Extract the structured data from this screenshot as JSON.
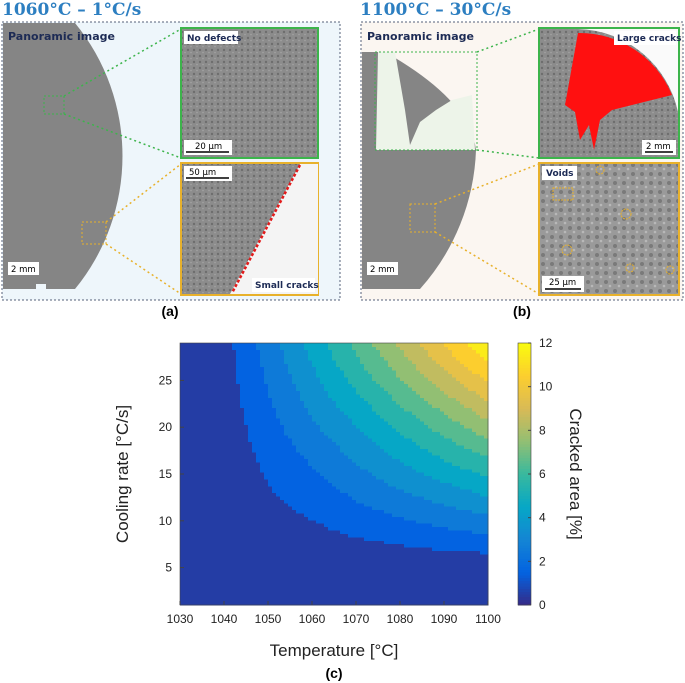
{
  "panels": [
    {
      "title": "1060°C – 1°C/s",
      "panorama": "Panoramic image",
      "scale": "2 mm",
      "insets": [
        {
          "label": "No defects",
          "scale": "20 µm"
        },
        {
          "label": "Small cracks",
          "scale": "50 µm"
        }
      ],
      "caption": "(a)"
    },
    {
      "title": "1100°C – 30°C/s",
      "panorama": "Panoramic image",
      "scale": "2 mm",
      "insets": [
        {
          "label": "Large cracks",
          "scale": "2 mm"
        },
        {
          "label": "Voids",
          "scale": "25 µm"
        }
      ],
      "caption": "(b)"
    }
  ],
  "chart_data": {
    "type": "contour",
    "x": [
      1030,
      1040,
      1050,
      1060,
      1070,
      1080,
      1090,
      1100
    ],
    "y": [
      1,
      5,
      9,
      13,
      17,
      21,
      25,
      29
    ],
    "z": [
      [
        0,
        0,
        0,
        0,
        0,
        0,
        0,
        0
      ],
      [
        0,
        0,
        0.1,
        0.1,
        0.1,
        0.2,
        0.2,
        0.2
      ],
      [
        0,
        0.1,
        0.5,
        0.8,
        1.2,
        1.5,
        1.9,
        2.2
      ],
      [
        0,
        0.2,
        0.9,
        1.5,
        2.2,
        2.9,
        3.5,
        4.2
      ],
      [
        0,
        0.3,
        1.3,
        2.2,
        3.2,
        4.2,
        5.2,
        6.1
      ],
      [
        0,
        0.4,
        1.7,
        3.0,
        4.2,
        5.5,
        6.8,
        8.1
      ],
      [
        0,
        0.5,
        2.1,
        3.7,
        5.3,
        6.9,
        8.5,
        10.1
      ],
      [
        0,
        0.6,
        2.5,
        4.4,
        6.3,
        8.2,
        10.1,
        12.0
      ]
    ],
    "xlim": [
      1030,
      1100
    ],
    "ylim": [
      1,
      29
    ],
    "xticks": [
      1030,
      1040,
      1050,
      1060,
      1070,
      1080,
      1090,
      1100
    ],
    "yticks": [
      5,
      10,
      15,
      20,
      25
    ],
    "levels": [
      0,
      1,
      2,
      3,
      4,
      5,
      6,
      7,
      8,
      9,
      10,
      11,
      12
    ],
    "colorbar_ticks": [
      0,
      2,
      4,
      6,
      8,
      10,
      12
    ],
    "colormap": "parula",
    "xlabel": "Temperature [°C]",
    "ylabel": "Cooling rate [°C/s]",
    "colorbar_label": "Cracked area [%]",
    "caption": "(c)"
  }
}
